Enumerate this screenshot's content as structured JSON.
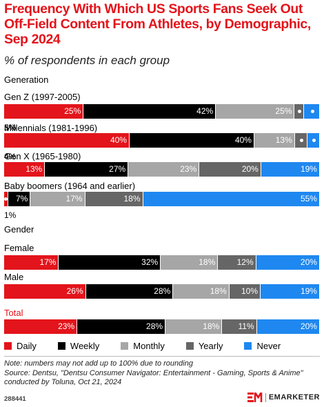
{
  "title": "Frequency With Which US Sports Fans Seek Out Off-Field Content From Athletes, by Demographic, Sep 2024",
  "subtitle": "% of respondents in each group",
  "colors": {
    "Daily": "#e3141b",
    "Weekly": "#000000",
    "Monthly": "#a6a6a6",
    "Yearly": "#666666",
    "Never": "#1e88f0"
  },
  "chart_data": {
    "type": "bar",
    "orientation": "horizontal",
    "stacked": true,
    "unit": "%",
    "xlim": [
      0,
      100
    ],
    "series_names": [
      "Daily",
      "Weekly",
      "Monthly",
      "Yearly",
      "Never"
    ],
    "sections": [
      {
        "label": "Generation",
        "rows": [
          {
            "label": "Gen Z (1997-2005)",
            "values": [
              25,
              42,
              25,
              3,
              5
            ]
          },
          {
            "label": "Millennials (1981-1996)",
            "values": [
              40,
              40,
              13,
              4,
              4
            ]
          },
          {
            "label": "Gen X (1965-1980)",
            "values": [
              13,
              27,
              23,
              20,
              19
            ]
          },
          {
            "label": "Baby boomers (1964 and earlier)",
            "values": [
              1,
              7,
              17,
              18,
              55
            ]
          }
        ]
      },
      {
        "label": "Gender",
        "rows": [
          {
            "label": "Female",
            "values": [
              17,
              32,
              18,
              12,
              20
            ]
          },
          {
            "label": "Male",
            "values": [
              26,
              28,
              18,
              10,
              19
            ]
          }
        ]
      },
      {
        "label": "",
        "rows": [
          {
            "label": "Total",
            "values": [
              23,
              28,
              18,
              11,
              20
            ]
          }
        ]
      }
    ],
    "legend": [
      "Daily",
      "Weekly",
      "Monthly",
      "Yearly",
      "Never"
    ],
    "legend_position": "bottom"
  },
  "note": "Note: numbers may not add up to 100% due to rounding",
  "source": "Source: Dentsu, \"Dentsu Consumer Navigator: Entertainment - Gaming, Sports & Anime\"",
  "source_cont": "conducted by Toluna, Oct 21, 2024",
  "chart_id": "288441",
  "brand": {
    "mark": "EM",
    "name": "EMARKETER"
  }
}
